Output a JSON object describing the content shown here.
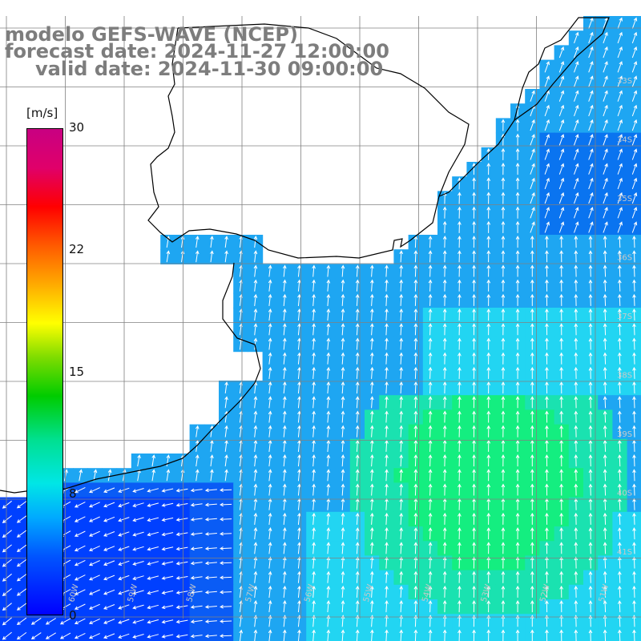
{
  "title": {
    "line1": "modelo GEFS-WAVE (NCEP)",
    "line2": "forecast date: 2024-11-27 12:00:00",
    "line3": "valid date: 2024-11-30 09:00:00"
  },
  "legend": {
    "unit": "[m/s]",
    "ticks": [
      {
        "label": "30",
        "value": 30
      },
      {
        "label": "22",
        "value": 22
      },
      {
        "label": "15",
        "value": 15
      },
      {
        "label": "8",
        "value": 8
      },
      {
        "label": "0",
        "value": 0
      }
    ],
    "range": [
      0,
      30
    ]
  },
  "map": {
    "lon_labels": [
      "60W",
      "59W",
      "58W",
      "57W",
      "56W",
      "55W",
      "54W",
      "53W",
      "52W",
      "51W"
    ],
    "lat_labels": [
      "33S",
      "34S",
      "35S",
      "36S",
      "37S",
      "38S",
      "39S",
      "40S",
      "41S"
    ],
    "land_color": "#ffffff",
    "grid_color": "#808080",
    "coast_color": "#000000",
    "arrow_color": "#ffffff",
    "wind_field_description_colors": {
      "deep": "#0040ff",
      "blue": "#0a74f0",
      "sky": "#1ea6f2",
      "cyan": "#22d5f2",
      "green": "#14ee80"
    }
  }
}
